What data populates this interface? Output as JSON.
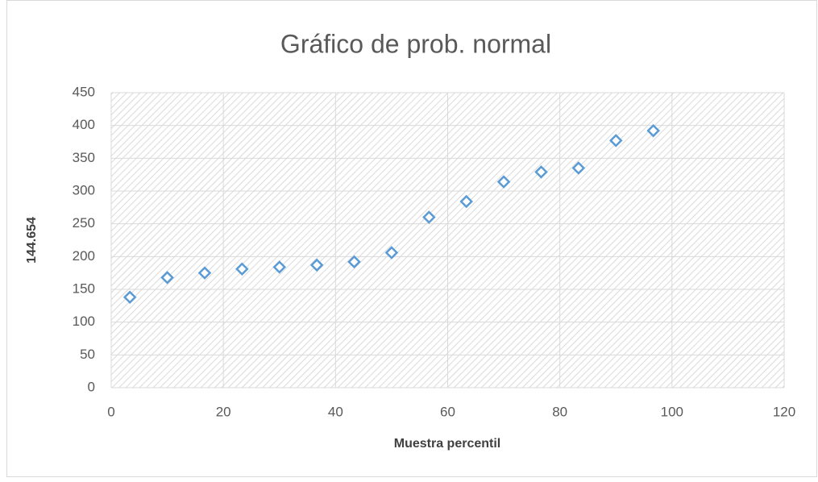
{
  "chart_data": {
    "type": "scatter",
    "title": "Gráfico de prob. normal",
    "x_label": "Muestra percentil",
    "y_label": "144.654",
    "series": [
      {
        "color": "#5b9bd5",
        "x": [
          3.33,
          10,
          16.67,
          23.33,
          30,
          36.67,
          43.33,
          50,
          56.67,
          63.33,
          70,
          76.67,
          83.33,
          90,
          96.67
        ],
        "values": [
          138,
          168,
          175,
          181,
          184,
          187,
          192,
          206,
          260,
          284,
          314,
          329,
          335,
          377,
          392
        ]
      }
    ],
    "xlim": [
      0,
      120
    ],
    "xticks": [
      0,
      20,
      40,
      60,
      80,
      100,
      120
    ],
    "ylim": [
      0,
      450
    ],
    "yticks": [
      0,
      50,
      100,
      150,
      200,
      250,
      300,
      350,
      400,
      450
    ],
    "grid": true
  }
}
